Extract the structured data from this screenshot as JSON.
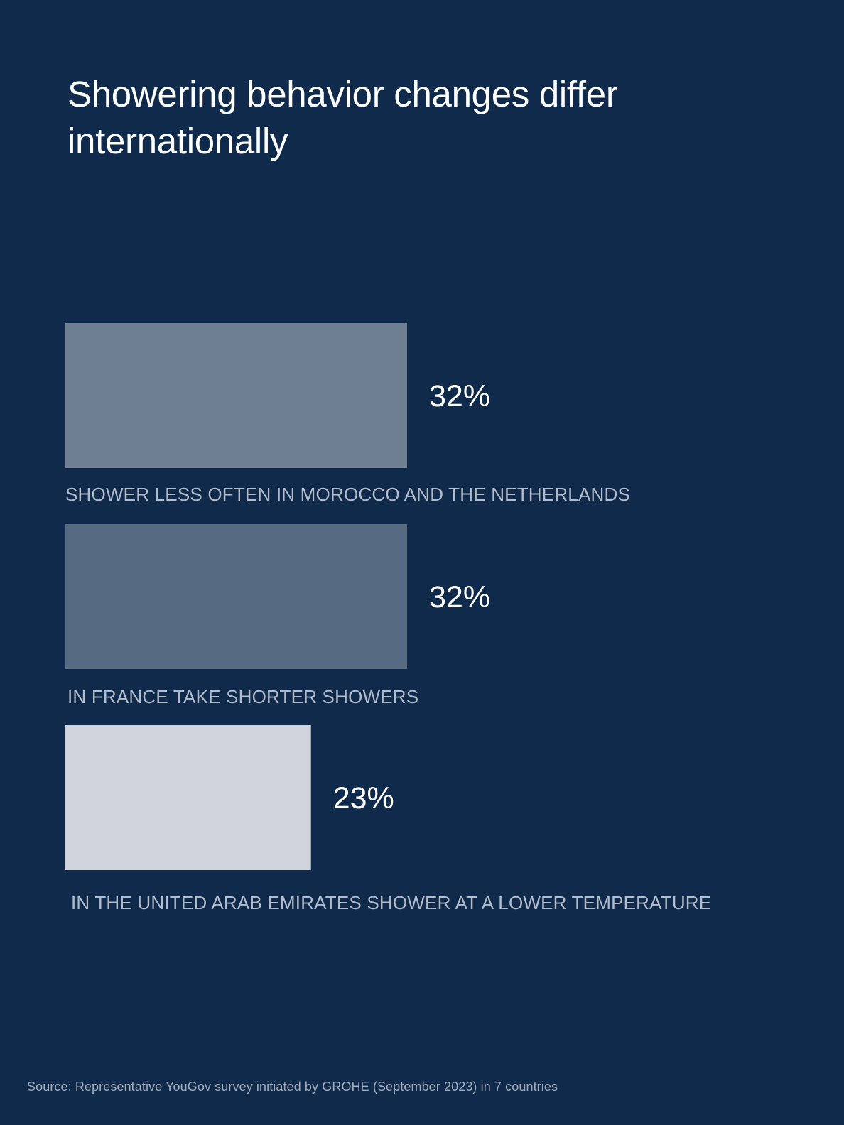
{
  "header": {
    "title": "Showering behavior changes differ internationally"
  },
  "chart_data": {
    "type": "bar",
    "orientation": "horizontal",
    "categories": [
      "SHOWER LESS OFTEN IN MOROCCO AND THE NETHERLANDS",
      "IN FRANCE TAKE SHORTER SHOWERS",
      "IN THE UNITED ARAB EMIRATES SHOWER AT A LOWER TEMPERATURE"
    ],
    "values": [
      32,
      32,
      23
    ],
    "value_labels": [
      "32%",
      "32%",
      "23%"
    ],
    "unit": "%",
    "colors": [
      "#6d7f91",
      "#566b81",
      "#d0d4dd"
    ],
    "xlim": [
      0,
      32
    ],
    "grid": false,
    "legend": "none"
  },
  "footer": {
    "source": "Source: Representative YouGov survey initiated by GROHE (September 2023) in 7 countries"
  },
  "colors": {
    "background": "#0f2a4b",
    "caption": "#b2bccb",
    "value_text": "#ffffff"
  }
}
